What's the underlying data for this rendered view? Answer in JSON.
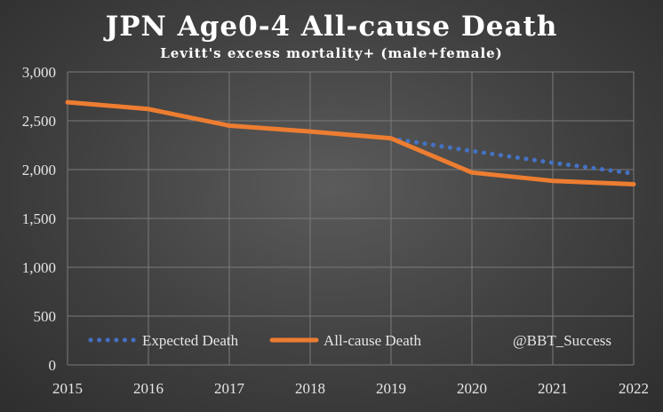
{
  "chart_data": {
    "type": "line",
    "title": "JPN Age0-4 All-cause Death",
    "subtitle": "Levitt's excess mortality+ (male+female)",
    "x": [
      2015,
      2016,
      2017,
      2018,
      2019,
      2020,
      2021,
      2022
    ],
    "x_tick_labels": [
      "2015",
      "2016",
      "2017",
      "2018",
      "2019",
      "2020",
      "2021",
      "2022"
    ],
    "y_tick_labels": [
      "0",
      "500",
      "1,000",
      "1,500",
      "2,000",
      "2,500",
      "3,000"
    ],
    "y_ticks": [
      0,
      500,
      1000,
      1500,
      2000,
      2500,
      3000
    ],
    "ylim": [
      0,
      3000
    ],
    "xlabel": "",
    "ylabel": "",
    "grid": true,
    "series": [
      {
        "name": "Expected Death",
        "style": "dotted",
        "color": "#4472C4",
        "x": [
          2019,
          2020,
          2021,
          2022
        ],
        "values": [
          2320,
          2190,
          2070,
          1960
        ]
      },
      {
        "name": "All-cause Death",
        "style": "solid",
        "color": "#ED7D31",
        "x": [
          2015,
          2016,
          2017,
          2018,
          2019,
          2020,
          2021,
          2022
        ],
        "values": [
          2690,
          2620,
          2450,
          2390,
          2320,
          1970,
          1885,
          1850
        ]
      }
    ],
    "legend_position": "bottom-left",
    "watermark": "@BBT_Success"
  },
  "colors": {
    "grid": "#7a7a7a",
    "text": "#e6e6e6"
  }
}
